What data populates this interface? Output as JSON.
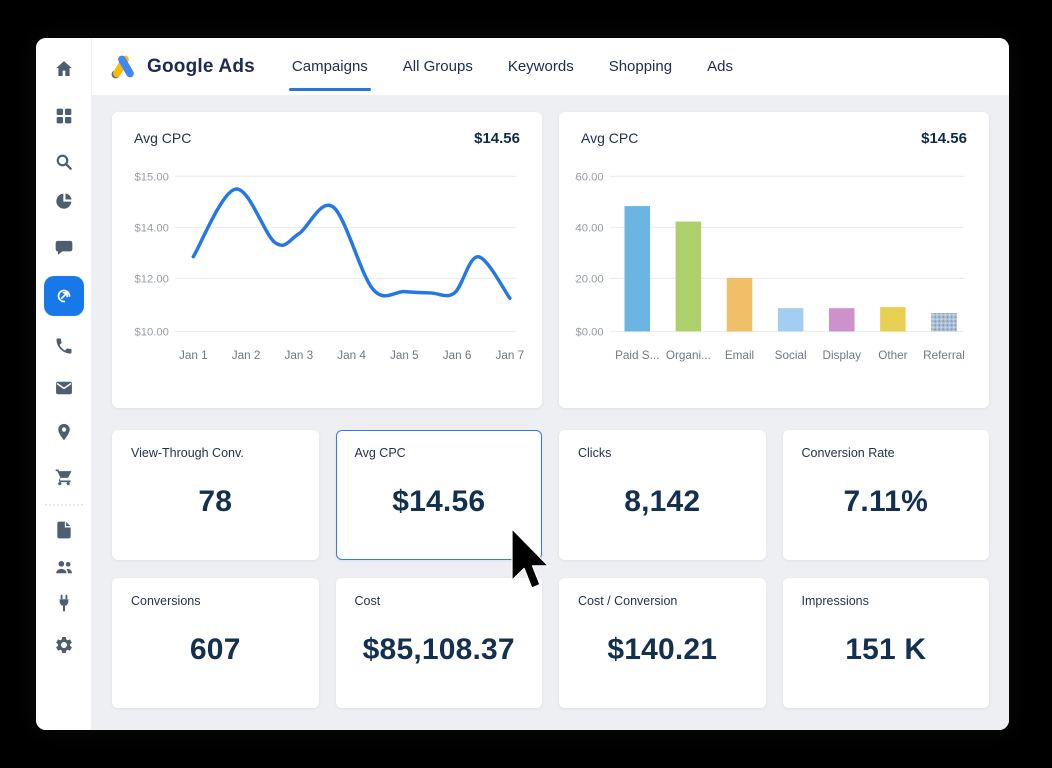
{
  "brand": {
    "name": "Google Ads"
  },
  "nav": {
    "tabs": [
      {
        "label": "Campaigns",
        "active": true
      },
      {
        "label": "All Groups",
        "active": false
      },
      {
        "label": "Keywords",
        "active": false
      },
      {
        "label": "Shopping",
        "active": false
      },
      {
        "label": "Ads",
        "active": false
      }
    ]
  },
  "sidebar": {
    "items": [
      {
        "icon": "home-icon"
      },
      {
        "icon": "dashboard-grid-icon"
      },
      {
        "icon": "search-icon"
      },
      {
        "icon": "pie-chart-icon"
      },
      {
        "icon": "chat-icon"
      },
      {
        "icon": "ads-target-icon",
        "active": true
      },
      {
        "icon": "phone-icon"
      },
      {
        "icon": "mail-icon"
      },
      {
        "icon": "location-pin-icon"
      },
      {
        "icon": "shopping-cart-icon"
      },
      {
        "icon": "document-icon"
      },
      {
        "icon": "users-icon"
      },
      {
        "icon": "plug-icon"
      },
      {
        "icon": "settings-gear-icon"
      }
    ],
    "active_color": "#1778e9"
  },
  "chart_data": [
    {
      "type": "line",
      "title": "Avg CPC",
      "value": "$14.56",
      "color": "#2577e6",
      "y_ticks": [
        "$15.00",
        "$14.00",
        "$12.00",
        "$10.00"
      ],
      "y_tick_values": [
        15,
        14,
        12,
        10
      ],
      "x_ticks": [
        "Jan 1",
        "Jan 2",
        "Jan 3",
        "Jan 4",
        "Jan 5",
        "Jan 6",
        "Jan 7"
      ],
      "curve_points": [
        [
          1,
          12.85
        ],
        [
          1.8,
          14.75
        ],
        [
          2.55,
          13.4
        ],
        [
          3.0,
          13.75
        ],
        [
          3.65,
          14.4
        ],
        [
          4.4,
          11.6
        ],
        [
          5.0,
          11.5
        ],
        [
          5.5,
          11.45
        ],
        [
          5.95,
          11.45
        ],
        [
          6.4,
          12.85
        ],
        [
          7,
          11.25
        ]
      ],
      "values_daily_estimate": [
        12.85,
        14.3,
        13.6,
        12.9,
        11.5,
        11.6,
        11.25
      ],
      "grid": true,
      "legend": "none"
    },
    {
      "type": "bar",
      "title": "Avg CPC",
      "value": "$14.56",
      "y_ticks": [
        "$60.00",
        "$40.00",
        "$20.00",
        "$0.00"
      ],
      "ymax": 60,
      "categories": [
        "Paid S...",
        "Organi...",
        "Email",
        "Social",
        "Display",
        "Other",
        "Referral"
      ],
      "values": [
        48.5,
        42.5,
        20.7,
        9,
        9,
        9.4,
        7.1
      ],
      "colors": [
        "#6cb5e3",
        "#aed06a",
        "#f0c068",
        "#a3cdf2",
        "#cd92cc",
        "#e8d052",
        "#a9bfd3"
      ],
      "textured_indices": [
        6
      ],
      "grid": true,
      "legend": "none"
    }
  ],
  "kpis": [
    {
      "label": "View-Through Conv.",
      "value": "78",
      "selected": false
    },
    {
      "label": "Avg CPC",
      "value": "$14.56",
      "selected": true
    },
    {
      "label": "Clicks",
      "value": "8,142",
      "selected": false
    },
    {
      "label": "Conversion Rate",
      "value": "7.11%",
      "selected": false
    },
    {
      "label": "Conversions",
      "value": "607",
      "selected": false
    },
    {
      "label": "Cost",
      "value": "$85,108.37",
      "selected": false
    },
    {
      "label": "Cost / Conversion",
      "value": "$140.21",
      "selected": false
    },
    {
      "label": "Impressions",
      "value": "151 K",
      "selected": false
    }
  ],
  "accent_color": "#2577e6"
}
